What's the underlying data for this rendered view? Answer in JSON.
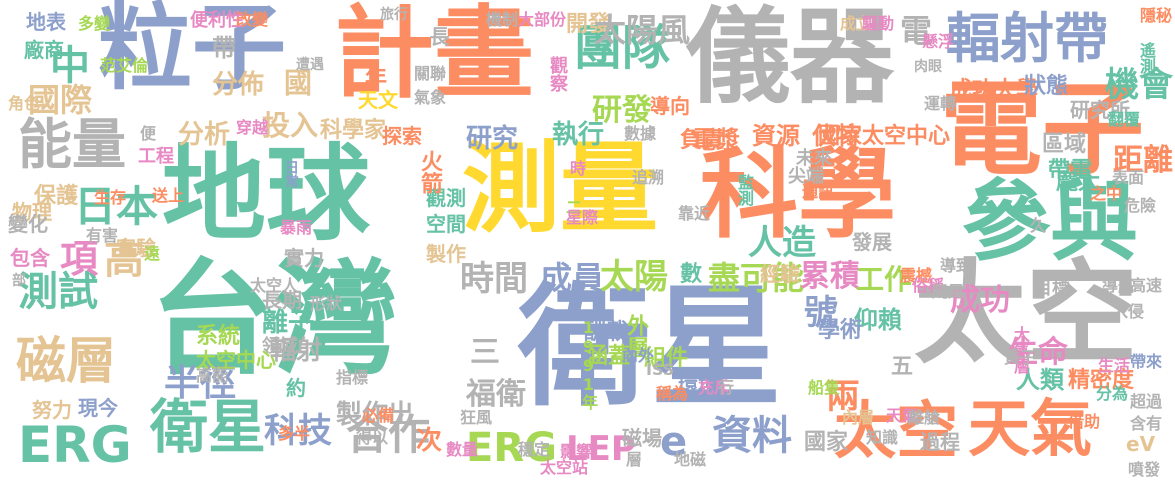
{
  "palette": {
    "green": "#66c2a5",
    "orange": "#fc8d62",
    "blue": "#8da0cb",
    "pink": "#e78ac3",
    "lime": "#a6d854",
    "yellow": "#ffd92f",
    "tan": "#e5c494",
    "gray": "#b3b3b3"
  },
  "words": [
    {
      "text": "台灣",
      "color": "green"
    },
    {
      "text": "衛星",
      "color": "blue"
    },
    {
      "text": "地球",
      "color": "green"
    },
    {
      "text": "測量",
      "color": "yellow"
    },
    {
      "text": "科學",
      "color": "orange"
    },
    {
      "text": "太空",
      "color": "gray"
    },
    {
      "text": "電子",
      "color": "orange"
    },
    {
      "text": "儀器",
      "color": "gray"
    },
    {
      "text": "計畫",
      "color": "orange"
    },
    {
      "text": "粒子",
      "color": "blue"
    },
    {
      "text": "參與",
      "color": "green"
    },
    {
      "text": "輻射帶",
      "color": "blue"
    },
    {
      "text": "太空",
      "color": "orange"
    },
    {
      "text": "天氣",
      "color": "orange"
    },
    {
      "text": "能量",
      "color": "gray"
    },
    {
      "text": "磁層",
      "color": "tan"
    },
    {
      "text": "衛星",
      "color": "green"
    },
    {
      "text": "ERG",
      "color": "green"
    },
    {
      "text": "ERG",
      "color": "lime"
    },
    {
      "text": "LEP",
      "color": "pink"
    },
    {
      "text": "e",
      "color": "blue"
    },
    {
      "text": "資料",
      "color": "blue"
    },
    {
      "text": "合作",
      "color": "gray"
    },
    {
      "text": "科技",
      "color": "blue"
    },
    {
      "text": "日本",
      "color": "green"
    },
    {
      "text": "國際",
      "color": "tan"
    },
    {
      "text": "測試",
      "color": "green"
    },
    {
      "text": "項",
      "color": "pink"
    },
    {
      "text": "高",
      "color": "tan"
    },
    {
      "text": "團隊",
      "color": "green"
    },
    {
      "text": "研發",
      "color": "lime"
    },
    {
      "text": "時間",
      "color": "gray"
    },
    {
      "text": "成員",
      "color": "blue"
    },
    {
      "text": "太陽",
      "color": "lime"
    },
    {
      "text": "盡可能",
      "color": "lime"
    },
    {
      "text": "累積",
      "color": "pink"
    },
    {
      "text": "工作",
      "color": "lime"
    },
    {
      "text": "號",
      "color": "blue"
    },
    {
      "text": "成功",
      "color": "pink"
    },
    {
      "text": "半徑",
      "color": "blue"
    },
    {
      "text": "福衛",
      "color": "gray"
    },
    {
      "text": "酬載",
      "color": "blue"
    },
    {
      "text": "涵蓋",
      "color": "lime"
    },
    {
      "text": "兩",
      "color": "orange"
    },
    {
      "text": "生命",
      "color": "pink"
    },
    {
      "text": "人類",
      "color": "green"
    },
    {
      "text": "精密度",
      "color": "orange"
    },
    {
      "text": "外層",
      "color": "lime"
    },
    {
      "text": "仰賴",
      "color": "green"
    },
    {
      "text": "製作出",
      "color": "gray"
    },
    {
      "text": "三",
      "color": "gray"
    },
    {
      "text": "次",
      "color": "orange"
    },
    {
      "text": "努力",
      "color": "tan"
    },
    {
      "text": "現今",
      "color": "blue"
    },
    {
      "text": "輻射",
      "color": "gray"
    },
    {
      "text": "約",
      "color": "green"
    },
    {
      "text": "投入",
      "color": "tan"
    },
    {
      "text": "科學家",
      "color": "tan"
    },
    {
      "text": "分佈",
      "color": "tan"
    },
    {
      "text": "分析",
      "color": "tan"
    },
    {
      "text": "研究",
      "color": "blue"
    },
    {
      "text": "執行",
      "color": "green"
    },
    {
      "text": "探索",
      "color": "orange"
    },
    {
      "text": "電漿",
      "color": "orange"
    },
    {
      "text": "資源",
      "color": "orange"
    },
    {
      "text": "伏特",
      "color": "orange"
    },
    {
      "text": "國家太空中心",
      "color": "orange"
    },
    {
      "text": "研究所",
      "color": "gray"
    },
    {
      "text": "機會",
      "color": "green"
    },
    {
      "text": "成功大學",
      "color": "orange"
    },
    {
      "text": "狀態",
      "color": "blue"
    },
    {
      "text": "區域",
      "color": "gray"
    },
    {
      "text": "帶電",
      "color": "green"
    },
    {
      "text": "距離",
      "color": "orange"
    },
    {
      "text": "龐大",
      "color": "green"
    },
    {
      "text": "人造",
      "color": "green"
    },
    {
      "text": "經驗",
      "color": "tan"
    },
    {
      "text": "發展",
      "color": "gray"
    },
    {
      "text": "尖端",
      "color": "gray"
    },
    {
      "text": "未來",
      "color": "gray"
    },
    {
      "text": "觀測",
      "color": "green"
    },
    {
      "text": "空間",
      "color": "green"
    },
    {
      "text": "製作",
      "color": "tan"
    },
    {
      "text": "火箭",
      "color": "orange"
    },
    {
      "text": "實力",
      "color": "gray"
    },
    {
      "text": "長期",
      "color": "gray"
    },
    {
      "text": "離子",
      "color": "green"
    },
    {
      "text": "領域",
      "color": "gray"
    },
    {
      "text": "系統",
      "color": "lime"
    },
    {
      "text": "形狀",
      "color": "gray"
    },
    {
      "text": "太空中心",
      "color": "lime"
    },
    {
      "text": "中",
      "color": "green"
    },
    {
      "text": "地表",
      "color": "blue"
    },
    {
      "text": "廠商",
      "color": "green"
    },
    {
      "text": "工程",
      "color": "pink"
    },
    {
      "text": "保護",
      "color": "tan"
    },
    {
      "text": "物理",
      "color": "tan"
    },
    {
      "text": "變化",
      "color": "gray"
    },
    {
      "text": "實驗",
      "color": "tan"
    },
    {
      "text": "包含",
      "color": "pink"
    },
    {
      "text": "部",
      "color": "gray"
    },
    {
      "text": "國",
      "color": "tan"
    },
    {
      "text": "年",
      "color": "orange"
    },
    {
      "text": "天文",
      "color": "yellow"
    },
    {
      "text": "帶",
      "color": "gray"
    },
    {
      "text": "長",
      "color": "gray"
    },
    {
      "text": "開發",
      "color": "tan"
    },
    {
      "text": "太陽風",
      "color": "gray"
    },
    {
      "text": "電",
      "color": "gray"
    },
    {
      "text": "導向",
      "color": "orange"
    },
    {
      "text": "負責",
      "color": "orange"
    },
    {
      "text": "學術",
      "color": "blue"
    },
    {
      "text": "組件",
      "color": "lime"
    },
    {
      "text": "環境",
      "color": "blue"
    },
    {
      "text": "磁場",
      "color": "gray"
    },
    {
      "text": "國家",
      "color": "gray"
    },
    {
      "text": "過程",
      "color": "gray"
    },
    {
      "text": "目標",
      "color": "gray"
    },
    {
      "text": "五",
      "color": "gray"
    },
    {
      "text": "數",
      "color": "green"
    },
    {
      "text": "eV",
      "color": "tan"
    },
    {
      "text": "便利性",
      "color": "pink"
    },
    {
      "text": "多變",
      "color": "lime"
    },
    {
      "text": "范艾倫",
      "color": "lime"
    },
    {
      "text": "角色",
      "color": "tan"
    },
    {
      "text": "改變",
      "color": "orange"
    },
    {
      "text": "遭遇",
      "color": "gray"
    },
    {
      "text": "旅行",
      "color": "gray"
    },
    {
      "text": "機制",
      "color": "gray"
    },
    {
      "text": "大部份",
      "color": "pink"
    },
    {
      "text": "成立",
      "color": "tan"
    },
    {
      "text": "驅動",
      "color": "pink"
    },
    {
      "text": "懸浮",
      "color": "pink"
    },
    {
      "text": "肉眼",
      "color": "gray"
    },
    {
      "text": "關聯",
      "color": "gray"
    },
    {
      "text": "氣象",
      "color": "gray"
    },
    {
      "text": "觀察",
      "color": "pink"
    },
    {
      "text": "運轉",
      "color": "gray"
    },
    {
      "text": "遙測",
      "color": "green"
    },
    {
      "text": "翻覆",
      "color": "green"
    },
    {
      "text": "隱秘",
      "color": "orange"
    },
    {
      "text": "穿越",
      "color": "pink"
    },
    {
      "text": "便",
      "color": "gray"
    },
    {
      "text": "數據",
      "color": "gray"
    },
    {
      "text": "之中",
      "color": "orange"
    },
    {
      "text": "表面",
      "color": "gray"
    },
    {
      "text": "危險",
      "color": "gray"
    },
    {
      "text": "生存",
      "color": "orange"
    },
    {
      "text": "送上",
      "color": "orange"
    },
    {
      "text": "日常",
      "color": "blue"
    },
    {
      "text": "暴雨",
      "color": "pink"
    },
    {
      "text": "時",
      "color": "pink"
    },
    {
      "text": "二",
      "color": "lime"
    },
    {
      "text": "星際",
      "color": "pink"
    },
    {
      "text": "追溯",
      "color": "gray"
    },
    {
      "text": "靠近",
      "color": "gray"
    },
    {
      "text": "監測",
      "color": "green"
    },
    {
      "text": "通訊",
      "color": "orange"
    },
    {
      "text": "久",
      "color": "gray"
    },
    {
      "text": "有害",
      "color": "gray"
    },
    {
      "text": "遠",
      "color": "lime"
    },
    {
      "text": "導致",
      "color": "gray"
    },
    {
      "text": "太空人",
      "color": "gray"
    },
    {
      "text": "震撼",
      "color": "orange"
    },
    {
      "text": "俗稱",
      "color": "pink"
    },
    {
      "text": "導航",
      "color": "gray"
    },
    {
      "text": "颶風",
      "color": "gray"
    },
    {
      "text": "高速",
      "color": "gray"
    },
    {
      "text": "入侵",
      "color": "gray"
    },
    {
      "text": "大氣層",
      "color": "pink"
    },
    {
      "text": "質子",
      "color": "gray"
    },
    {
      "text": "生活",
      "color": "pink"
    },
    {
      "text": "帶來",
      "color": "blue"
    },
    {
      "text": "分為",
      "color": "green"
    },
    {
      "text": "超過",
      "color": "gray"
    },
    {
      "text": "高能",
      "color": "gray"
    },
    {
      "text": "指標",
      "color": "gray"
    },
    {
      "text": "必備",
      "color": "orange"
    },
    {
      "text": "得以",
      "color": "gray"
    },
    {
      "text": "狂風",
      "color": "gray"
    },
    {
      "text": "1991年",
      "color": "lime"
    },
    {
      "text": "內外",
      "color": "blue"
    },
    {
      "text": "ISS",
      "color": "gray"
    },
    {
      "text": "稱為",
      "color": "orange"
    },
    {
      "text": "充斥",
      "color": "pink"
    },
    {
      "text": "行",
      "color": "gray"
    },
    {
      "text": "船隻",
      "color": "lime"
    },
    {
      "text": "內層",
      "color": "tan"
    },
    {
      "text": "知識",
      "color": "gray"
    },
    {
      "text": "天氣",
      "color": "pink"
    },
    {
      "text": "離艙",
      "color": "gray"
    },
    {
      "text": "含有",
      "color": "gray"
    },
    {
      "text": "借助",
      "color": "orange"
    },
    {
      "text": "噴發",
      "color": "gray"
    },
    {
      "text": "影響",
      "color": "pink"
    },
    {
      "text": "多半",
      "color": "orange"
    },
    {
      "text": "數量",
      "color": "pink"
    },
    {
      "text": "穩定",
      "color": "gray"
    },
    {
      "text": "太空站",
      "color": "pink"
    },
    {
      "text": "層",
      "color": "gray"
    },
    {
      "text": "地磁",
      "color": "gray"
    }
  ]
}
